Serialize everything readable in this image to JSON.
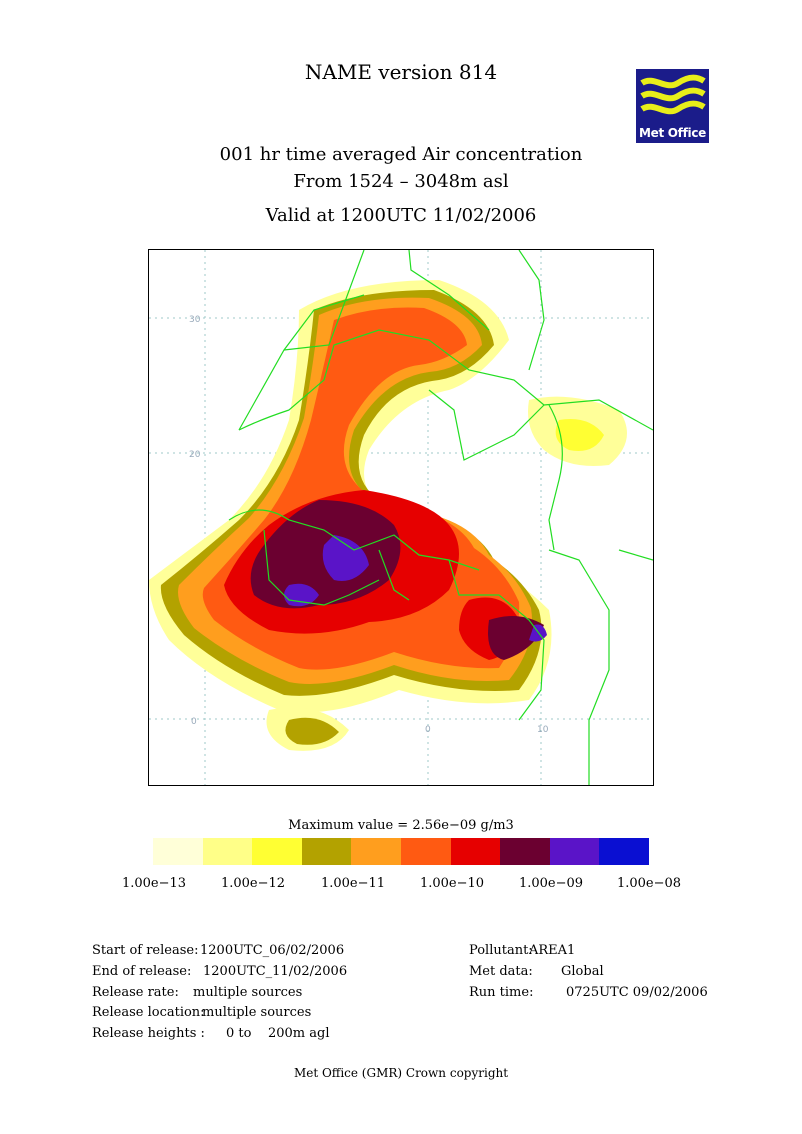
{
  "header": {
    "title": "NAME version 814",
    "subtitle_line1": "001 hr time averaged   Air concentration",
    "subtitle_line2": "From  1524 –  3048m asl",
    "valid": "Valid at 1200UTC 11/02/2006",
    "logo_text": "Met Office"
  },
  "map": {
    "grid_labels": {
      "lat": [
        "30",
        "20",
        "0"
      ],
      "lon": [
        "0",
        "10"
      ]
    },
    "plume_levels": [
      "1.00e-13",
      "1.00e-12",
      "1.00e-11",
      "1.00e-10",
      "1.00e-09",
      "1.00e-08"
    ]
  },
  "legend": {
    "max_value": "Maximum value = 2.56e−09 g/m3",
    "colors": [
      "#ffffd8",
      "#ffff88",
      "#ffff33",
      "#b3a200",
      "#ff9e1e",
      "#ff5a12",
      "#e60000",
      "#6b0030",
      "#5a14c8",
      "#0a0fd2"
    ],
    "tick_labels": [
      "1.00e−13",
      "1.00e−12",
      "1.00e−11",
      "1.00e−10",
      "1.00e−09",
      "1.00e−08"
    ]
  },
  "release_info": {
    "start_label": "Start of release:",
    "start_value": "1200UTC_06/02/2006",
    "end_label": "End of release:",
    "end_value": "1200UTC_11/02/2006",
    "rate_label": "Release rate:",
    "rate_value": "multiple sources",
    "location_label": "Release location:",
    "location_value": "multiple sources",
    "heights_label": "Release heights :",
    "heights_value": "0 to    200m agl"
  },
  "run_info": {
    "pollutant_label": "Pollutant:",
    "pollutant_value": "AREA1",
    "met_label": "Met data:",
    "met_value": "Global",
    "run_label": "Run time:",
    "run_value": "0725UTC 09/02/2006"
  },
  "footer": "Met Office (GMR)  Crown copyright"
}
